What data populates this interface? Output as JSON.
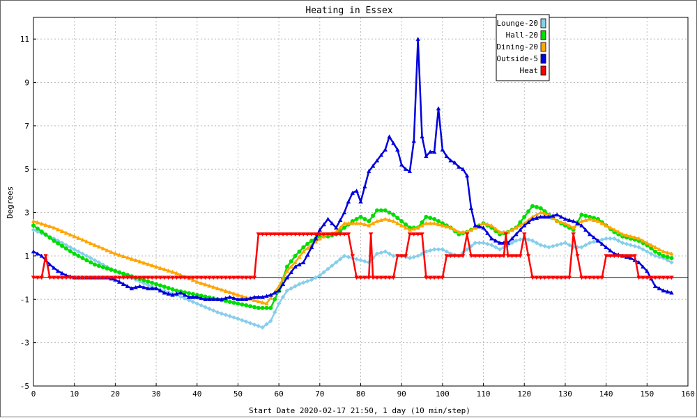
{
  "chart_data": {
    "type": "line",
    "title": "Heating in Essex",
    "xlabel": "Start Date 2020-02-17 21:50, 1 day (10 min/step)",
    "ylabel": "Degrees",
    "xlim": [
      0,
      160
    ],
    "ylim": [
      -5,
      12
    ],
    "xticks": [
      0,
      10,
      20,
      30,
      40,
      50,
      60,
      70,
      80,
      90,
      100,
      110,
      120,
      130,
      140,
      150,
      160
    ],
    "yticks": [
      -5,
      -3,
      -1,
      1,
      3,
      5,
      7,
      9,
      11
    ],
    "grid": true,
    "legend_position": "top-right",
    "series": [
      {
        "name": "Lounge-20",
        "color": "#87ceeb",
        "marker": "diamond",
        "points": [
          [
            0,
            2.2
          ],
          [
            5,
            1.8
          ],
          [
            10,
            1.3
          ],
          [
            15,
            0.8
          ],
          [
            20,
            0.3
          ],
          [
            25,
            -0.1
          ],
          [
            30,
            -0.5
          ],
          [
            35,
            -0.8
          ],
          [
            40,
            -1.2
          ],
          [
            45,
            -1.6
          ],
          [
            50,
            -1.9
          ],
          [
            53,
            -2.1
          ],
          [
            56,
            -2.3
          ],
          [
            58,
            -2.0
          ],
          [
            60,
            -1.2
          ],
          [
            62,
            -0.6
          ],
          [
            65,
            -0.3
          ],
          [
            68,
            -0.1
          ],
          [
            70,
            0.1
          ],
          [
            72,
            0.4
          ],
          [
            74,
            0.7
          ],
          [
            76,
            1.0
          ],
          [
            78,
            0.9
          ],
          [
            80,
            0.8
          ],
          [
            82,
            0.7
          ],
          [
            84,
            1.1
          ],
          [
            86,
            1.2
          ],
          [
            88,
            1.0
          ],
          [
            90,
            1.0
          ],
          [
            92,
            0.9
          ],
          [
            94,
            1.0
          ],
          [
            96,
            1.2
          ],
          [
            98,
            1.3
          ],
          [
            100,
            1.3
          ],
          [
            102,
            1.1
          ],
          [
            104,
            1.0
          ],
          [
            106,
            1.3
          ],
          [
            108,
            1.6
          ],
          [
            110,
            1.6
          ],
          [
            112,
            1.5
          ],
          [
            114,
            1.3
          ],
          [
            116,
            1.5
          ],
          [
            118,
            1.7
          ],
          [
            120,
            1.8
          ],
          [
            122,
            1.7
          ],
          [
            124,
            1.5
          ],
          [
            126,
            1.4
          ],
          [
            128,
            1.5
          ],
          [
            130,
            1.6
          ],
          [
            132,
            1.4
          ],
          [
            134,
            1.4
          ],
          [
            136,
            1.6
          ],
          [
            138,
            1.7
          ],
          [
            140,
            1.8
          ],
          [
            142,
            1.8
          ],
          [
            144,
            1.6
          ],
          [
            146,
            1.5
          ],
          [
            148,
            1.4
          ],
          [
            150,
            1.2
          ],
          [
            152,
            1.0
          ],
          [
            154,
            0.9
          ],
          [
            156,
            0.7
          ]
        ]
      },
      {
        "name": "Hall-20",
        "color": "#00dd00",
        "marker": "circle",
        "points": [
          [
            0,
            2.4
          ],
          [
            5,
            1.7
          ],
          [
            10,
            1.1
          ],
          [
            15,
            0.6
          ],
          [
            20,
            0.3
          ],
          [
            25,
            0.0
          ],
          [
            30,
            -0.3
          ],
          [
            35,
            -0.6
          ],
          [
            40,
            -0.8
          ],
          [
            45,
            -1.0
          ],
          [
            50,
            -1.2
          ],
          [
            55,
            -1.4
          ],
          [
            58,
            -1.4
          ],
          [
            60,
            -0.6
          ],
          [
            62,
            0.5
          ],
          [
            64,
            1.0
          ],
          [
            66,
            1.4
          ],
          [
            68,
            1.7
          ],
          [
            70,
            1.9
          ],
          [
            72,
            1.9
          ],
          [
            74,
            2.0
          ],
          [
            76,
            2.3
          ],
          [
            78,
            2.6
          ],
          [
            80,
            2.8
          ],
          [
            82,
            2.6
          ],
          [
            84,
            3.1
          ],
          [
            86,
            3.1
          ],
          [
            88,
            2.9
          ],
          [
            90,
            2.6
          ],
          [
            92,
            2.3
          ],
          [
            94,
            2.3
          ],
          [
            96,
            2.8
          ],
          [
            98,
            2.7
          ],
          [
            100,
            2.5
          ],
          [
            102,
            2.3
          ],
          [
            104,
            2.0
          ],
          [
            106,
            2.1
          ],
          [
            108,
            2.3
          ],
          [
            110,
            2.5
          ],
          [
            112,
            2.3
          ],
          [
            114,
            2.0
          ],
          [
            116,
            2.1
          ],
          [
            118,
            2.3
          ],
          [
            120,
            2.8
          ],
          [
            122,
            3.3
          ],
          [
            124,
            3.2
          ],
          [
            126,
            2.9
          ],
          [
            128,
            2.6
          ],
          [
            130,
            2.4
          ],
          [
            132,
            2.2
          ],
          [
            134,
            2.9
          ],
          [
            136,
            2.8
          ],
          [
            138,
            2.7
          ],
          [
            140,
            2.4
          ],
          [
            142,
            2.1
          ],
          [
            144,
            1.9
          ],
          [
            146,
            1.8
          ],
          [
            148,
            1.7
          ],
          [
            150,
            1.5
          ],
          [
            152,
            1.2
          ],
          [
            154,
            1.0
          ],
          [
            156,
            0.9
          ]
        ]
      },
      {
        "name": "Dining-20",
        "color": "#ffa500",
        "marker": "triangle",
        "points": [
          [
            0,
            2.6
          ],
          [
            5,
            2.3
          ],
          [
            10,
            1.9
          ],
          [
            15,
            1.5
          ],
          [
            20,
            1.1
          ],
          [
            25,
            0.8
          ],
          [
            30,
            0.5
          ],
          [
            35,
            0.2
          ],
          [
            40,
            -0.2
          ],
          [
            45,
            -0.5
          ],
          [
            50,
            -0.8
          ],
          [
            55,
            -1.1
          ],
          [
            57,
            -1.2
          ],
          [
            60,
            -0.4
          ],
          [
            62,
            0.3
          ],
          [
            64,
            0.7
          ],
          [
            66,
            1.2
          ],
          [
            68,
            1.5
          ],
          [
            70,
            1.8
          ],
          [
            72,
            2.0
          ],
          [
            74,
            2.1
          ],
          [
            76,
            2.5
          ],
          [
            78,
            2.5
          ],
          [
            80,
            2.5
          ],
          [
            82,
            2.4
          ],
          [
            84,
            2.6
          ],
          [
            86,
            2.7
          ],
          [
            88,
            2.6
          ],
          [
            90,
            2.4
          ],
          [
            92,
            2.2
          ],
          [
            94,
            2.3
          ],
          [
            96,
            2.5
          ],
          [
            98,
            2.5
          ],
          [
            100,
            2.4
          ],
          [
            102,
            2.3
          ],
          [
            104,
            2.1
          ],
          [
            106,
            2.1
          ],
          [
            108,
            2.3
          ],
          [
            110,
            2.5
          ],
          [
            112,
            2.4
          ],
          [
            114,
            2.1
          ],
          [
            116,
            2.1
          ],
          [
            118,
            2.3
          ],
          [
            120,
            2.5
          ],
          [
            122,
            2.8
          ],
          [
            124,
            3.0
          ],
          [
            126,
            2.9
          ],
          [
            128,
            2.6
          ],
          [
            130,
            2.5
          ],
          [
            132,
            2.3
          ],
          [
            134,
            2.6
          ],
          [
            136,
            2.7
          ],
          [
            138,
            2.6
          ],
          [
            140,
            2.4
          ],
          [
            142,
            2.2
          ],
          [
            144,
            2.0
          ],
          [
            146,
            1.9
          ],
          [
            148,
            1.8
          ],
          [
            150,
            1.6
          ],
          [
            152,
            1.4
          ],
          [
            154,
            1.2
          ],
          [
            156,
            1.1
          ]
        ]
      },
      {
        "name": "Outside-5",
        "color": "#0000dd",
        "marker": "triangle",
        "points": [
          [
            0,
            1.2
          ],
          [
            2,
            1.0
          ],
          [
            4,
            0.6
          ],
          [
            6,
            0.3
          ],
          [
            8,
            0.1
          ],
          [
            10,
            0.0
          ],
          [
            12,
            0.0
          ],
          [
            14,
            0.0
          ],
          [
            16,
            0.0
          ],
          [
            18,
            0.0
          ],
          [
            20,
            -0.1
          ],
          [
            22,
            -0.3
          ],
          [
            24,
            -0.5
          ],
          [
            26,
            -0.4
          ],
          [
            28,
            -0.5
          ],
          [
            30,
            -0.5
          ],
          [
            32,
            -0.7
          ],
          [
            34,
            -0.8
          ],
          [
            36,
            -0.7
          ],
          [
            38,
            -0.9
          ],
          [
            40,
            -0.9
          ],
          [
            42,
            -1.0
          ],
          [
            44,
            -1.0
          ],
          [
            46,
            -1.0
          ],
          [
            48,
            -0.9
          ],
          [
            50,
            -1.0
          ],
          [
            52,
            -1.0
          ],
          [
            54,
            -0.9
          ],
          [
            56,
            -0.9
          ],
          [
            58,
            -0.8
          ],
          [
            60,
            -0.6
          ],
          [
            62,
            0.0
          ],
          [
            64,
            0.5
          ],
          [
            66,
            0.7
          ],
          [
            68,
            1.4
          ],
          [
            70,
            2.2
          ],
          [
            72,
            2.7
          ],
          [
            74,
            2.3
          ],
          [
            76,
            3.0
          ],
          [
            77,
            3.5
          ],
          [
            78,
            3.9
          ],
          [
            79,
            4.0
          ],
          [
            80,
            3.5
          ],
          [
            82,
            4.9
          ],
          [
            84,
            5.4
          ],
          [
            86,
            5.9
          ],
          [
            87,
            6.5
          ],
          [
            88,
            6.2
          ],
          [
            89,
            5.9
          ],
          [
            90,
            5.2
          ],
          [
            91,
            5.0
          ],
          [
            92,
            4.9
          ],
          [
            93,
            6.3
          ],
          [
            94,
            11.0
          ],
          [
            95,
            6.5
          ],
          [
            96,
            5.6
          ],
          [
            97,
            5.8
          ],
          [
            98,
            5.8
          ],
          [
            99,
            7.8
          ],
          [
            100,
            5.9
          ],
          [
            101,
            5.6
          ],
          [
            102,
            5.4
          ],
          [
            103,
            5.3
          ],
          [
            104,
            5.1
          ],
          [
            105,
            5.0
          ],
          [
            106,
            4.7
          ],
          [
            107,
            3.2
          ],
          [
            108,
            2.4
          ],
          [
            110,
            2.3
          ],
          [
            112,
            1.8
          ],
          [
            114,
            1.6
          ],
          [
            116,
            1.6
          ],
          [
            118,
            2.0
          ],
          [
            120,
            2.4
          ],
          [
            122,
            2.7
          ],
          [
            124,
            2.8
          ],
          [
            126,
            2.8
          ],
          [
            128,
            2.9
          ],
          [
            130,
            2.7
          ],
          [
            132,
            2.6
          ],
          [
            134,
            2.4
          ],
          [
            136,
            2.0
          ],
          [
            138,
            1.7
          ],
          [
            140,
            1.4
          ],
          [
            142,
            1.1
          ],
          [
            144,
            1.0
          ],
          [
            146,
            0.9
          ],
          [
            148,
            0.7
          ],
          [
            150,
            0.3
          ],
          [
            152,
            -0.4
          ],
          [
            154,
            -0.6
          ],
          [
            156,
            -0.7
          ]
        ]
      },
      {
        "name": "Heat",
        "color": "#ff0000",
        "marker": "triangle-down",
        "step": true,
        "points": [
          [
            0,
            0
          ],
          [
            2,
            0
          ],
          [
            3,
            1
          ],
          [
            4,
            0
          ],
          [
            54,
            0
          ],
          [
            55,
            2
          ],
          [
            77,
            2
          ],
          [
            78,
            1
          ],
          [
            79,
            0
          ],
          [
            82,
            0
          ],
          [
            82.5,
            2
          ],
          [
            83,
            0
          ],
          [
            88,
            0
          ],
          [
            89,
            1
          ],
          [
            91,
            1
          ],
          [
            92,
            2
          ],
          [
            95,
            2
          ],
          [
            96,
            0
          ],
          [
            100,
            0
          ],
          [
            101,
            1
          ],
          [
            105,
            1
          ],
          [
            106,
            2
          ],
          [
            107,
            1
          ],
          [
            110,
            1
          ],
          [
            115,
            1
          ],
          [
            115.5,
            2
          ],
          [
            116,
            1
          ],
          [
            119,
            1
          ],
          [
            120,
            2
          ],
          [
            121,
            1
          ],
          [
            122,
            0
          ],
          [
            131,
            0
          ],
          [
            132,
            2
          ],
          [
            134,
            0
          ],
          [
            139,
            0
          ],
          [
            140,
            1
          ],
          [
            147,
            1
          ],
          [
            148,
            0
          ],
          [
            156,
            0
          ]
        ]
      }
    ]
  }
}
